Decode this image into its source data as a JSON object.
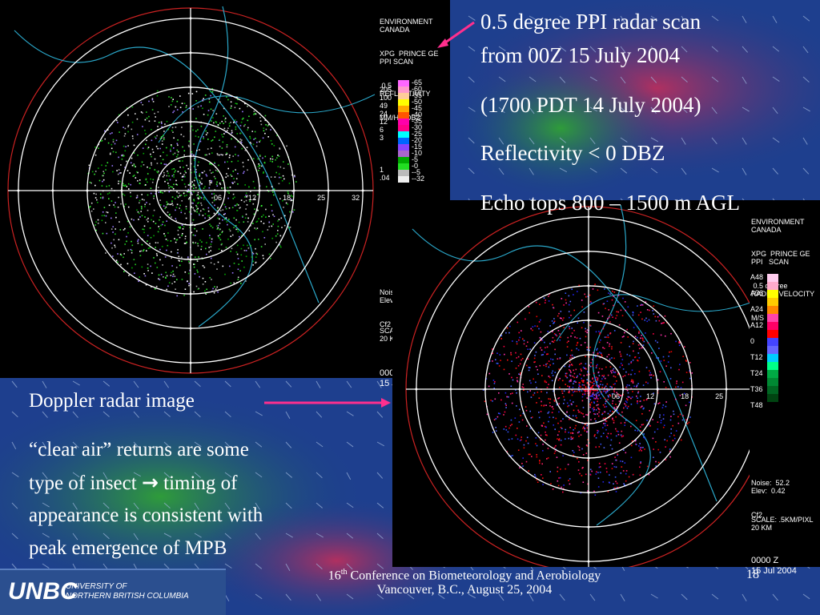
{
  "slide_number": "18",
  "main_text": {
    "line1": "0.5 degree PPI radar scan",
    "line2": "from 00Z 15 July 2004",
    "line3": "(1700 PDT 14 July 2004)",
    "line4": "Reflectivity < 0 DBZ",
    "line5": "Echo tops 800 – 1500 m AGL"
  },
  "left_text": {
    "heading": "Doppler radar image",
    "body1": "“clear air” returns are some",
    "body2a": "type of insect ",
    "arrow": "→",
    "body2b": " timing of",
    "body3": "appearance is consistent with",
    "body4": "peak emergence of MPB"
  },
  "footer": {
    "conf_num": "16",
    "conf_sup": "th",
    "conf_rest": " Conference on Biometeorology and Aerobiology",
    "line2": "Vancouver, B.C., August 25, 2004"
  },
  "logo": {
    "mark": "UNBC",
    "line1": "UNIVERSITY OF",
    "line2": "NORTHERN BRITISH COLUMBIA"
  },
  "radar1": {
    "header": [
      "ENVIRONMENT",
      "CANADA",
      "XPG  PRINCE GE",
      "PPI SCAN",
      " 0.5",
      "REFLECTIVITY",
      "MM/HR:DBZ"
    ],
    "scale_rain": [
      "205",
      "100",
      "49",
      "24",
      "12",
      "6",
      "3",
      "",
      "",
      "",
      "1",
      ".04"
    ],
    "scale_dbz": [
      "65",
      "60",
      "55",
      "50",
      "45",
      "40",
      "35",
      "30",
      "25",
      "20",
      "15",
      "10",
      "5",
      "0",
      "-5",
      "-32"
    ],
    "colors": [
      "#ff66ff",
      "#ff99cc",
      "#ffcc99",
      "#ffff00",
      "#ffaa00",
      "#ff5500",
      "#ff00aa",
      "#ff0088",
      "#00ffff",
      "#0066ff",
      "#8844ff",
      "#aa66cc",
      "#00aa00",
      "#22dd22",
      "#bbbbbb",
      "#eeeeee"
    ],
    "info": [
      "Noise:  52.2",
      "Elev:  0.42",
      "Cf2 CSR=18 VELM"
    ],
    "scale_label": "SCALE: .5KM/PIXL",
    "scale_km": "20 KM",
    "time": "0000 Z",
    "date": "15 Jul 2004",
    "ring_labels": [
      "06",
      "12",
      "18",
      "25",
      "32"
    ]
  },
  "radar2": {
    "header": [
      "ENVIRONMENT",
      "CANADA",
      "XPG  PRINCE GE",
      "PPI   SCAN",
      " 0.5 degree",
      "RADIAL VELOCITY",
      "M/S"
    ],
    "scale_labels": [
      "A48",
      "A36",
      "A24",
      "A12",
      "0",
      "T12",
      "T24",
      "T36",
      "T48"
    ],
    "colors": [
      "#ffccee",
      "#ffaacc",
      "#ffff00",
      "#ffcc00",
      "#ff8800",
      "#ff44aa",
      "#ff0066",
      "#ff0000",
      "#4444ff",
      "#6666ff",
      "#00ccff",
      "#00ff88",
      "#00aa44",
      "#008833",
      "#006622",
      "#004411"
    ],
    "info": [
      "Noise:  52.2",
      "Elev:  0.42",
      "Cf2"
    ],
    "scale_label": "SCALE: .5KM/PIXL",
    "scale_km": "20 KM",
    "time": "0000 Z",
    "date": "15 Jul 2004",
    "ring_labels": [
      "06",
      "12",
      "18",
      "25",
      "32"
    ]
  }
}
